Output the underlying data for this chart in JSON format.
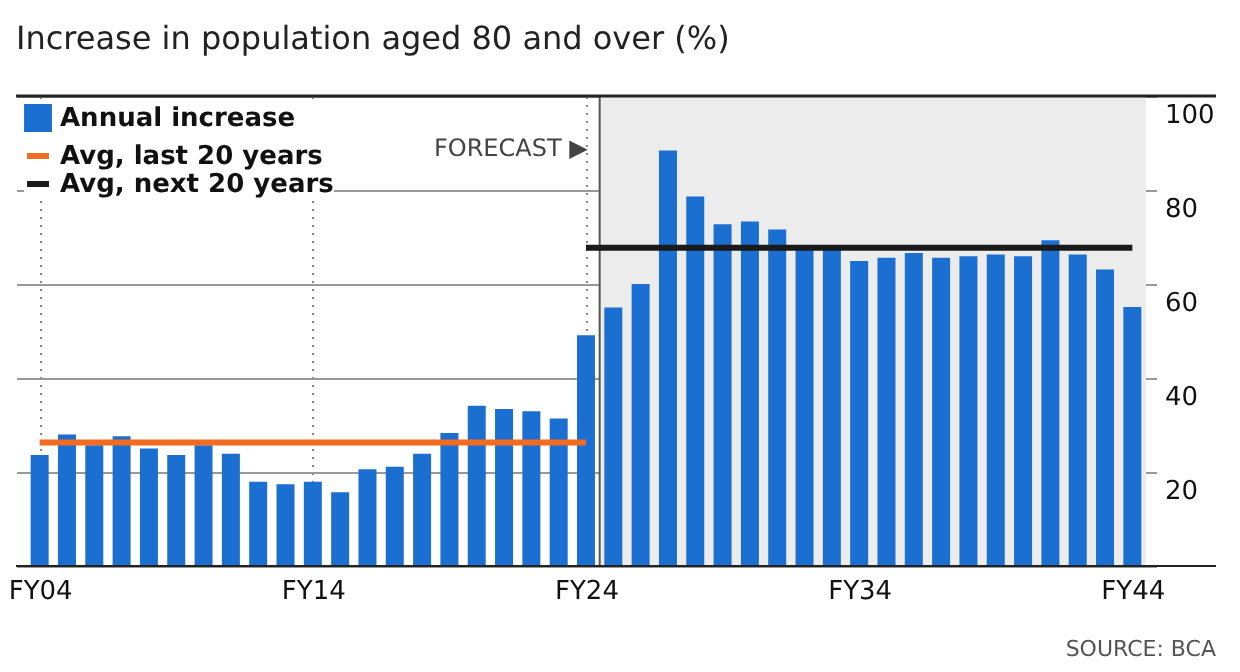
{
  "chart_data": {
    "type": "bar",
    "title": "Increase in population aged 80 and over (%)",
    "categories": [
      "FY04",
      null,
      null,
      null,
      null,
      null,
      null,
      null,
      null,
      null,
      "FY14",
      null,
      null,
      null,
      null,
      null,
      null,
      null,
      null,
      null,
      "FY24",
      null,
      null,
      null,
      null,
      null,
      null,
      null,
      null,
      null,
      "FY34",
      null,
      null,
      null,
      null,
      null,
      null,
      null,
      null,
      null,
      "FY44"
    ],
    "series": [
      {
        "name": "Annual increase",
        "color": "#1a6fd0",
        "values": [
          23.6,
          28.0,
          25.7,
          27.6,
          25.0,
          23.6,
          25.7,
          23.9,
          17.9,
          17.4,
          17.9,
          15.7,
          20.6,
          21.1,
          23.9,
          28.3,
          34.1,
          33.4,
          32.9,
          31.4,
          49.1,
          55.0,
          60.0,
          88.4,
          78.6,
          72.7,
          73.3,
          71.6,
          68.0,
          68.3,
          64.9,
          65.6,
          66.6,
          65.6,
          65.9,
          66.3,
          65.9,
          69.3,
          66.3,
          63.1,
          55.1
        ]
      },
      {
        "name": "Avg, last 20 years",
        "type": "line",
        "color": "#f26b21",
        "x": [
          "FY04",
          "FY24"
        ],
        "values": [
          26.3,
          26.3
        ]
      },
      {
        "name": "Avg, next 20 years",
        "type": "line",
        "color": "#1a1a1a",
        "x": [
          "FY24",
          "FY44"
        ],
        "values": [
          67.7,
          67.7
        ]
      }
    ],
    "ylim": [
      0,
      100
    ],
    "yticks": [
      {
        "value": 0,
        "label": null
      },
      20,
      40,
      60,
      80,
      100
    ],
    "bands": [
      {
        "axis": "x",
        "from": "FY24",
        "to": "FY44",
        "label": "FORECAST ▶",
        "color": "#ececec"
      }
    ],
    "grid": true,
    "legend": "top left",
    "annotations": [
      "SOURCE: BCA"
    ]
  }
}
